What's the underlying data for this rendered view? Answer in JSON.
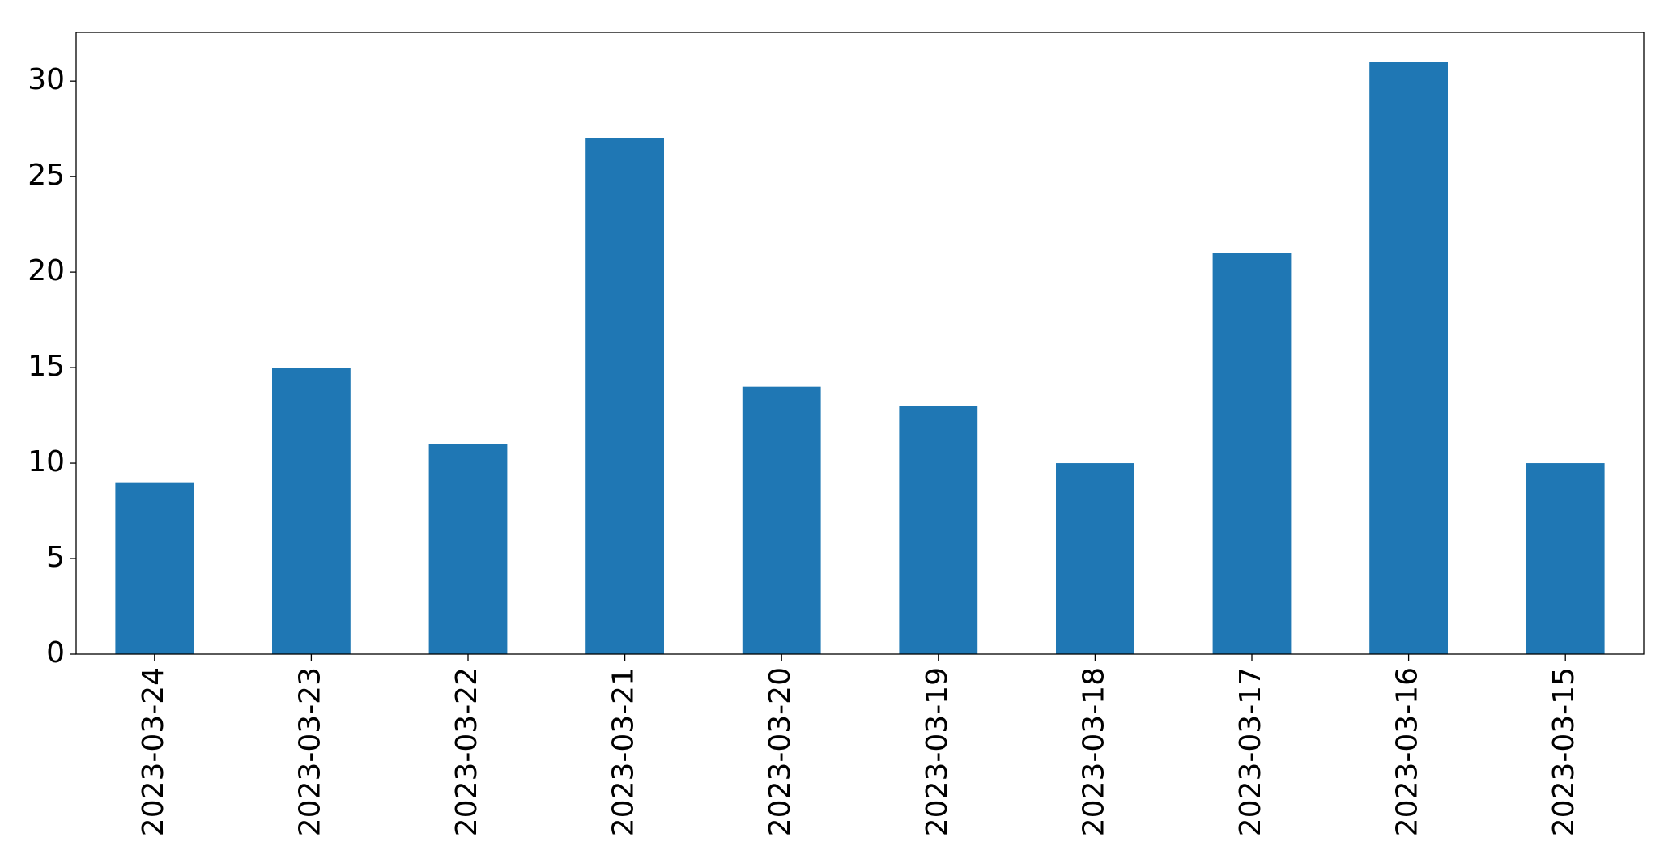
{
  "chart_data": {
    "type": "bar",
    "categories": [
      "2023-03-24",
      "2023-03-23",
      "2023-03-22",
      "2023-03-21",
      "2023-03-20",
      "2023-03-19",
      "2023-03-18",
      "2023-03-17",
      "2023-03-16",
      "2023-03-15"
    ],
    "values": [
      9,
      15,
      11,
      27,
      14,
      13,
      10,
      21,
      31,
      10
    ],
    "color": "#1f77b4",
    "ylim": [
      0,
      32.55
    ],
    "yticks": [
      0,
      5,
      10,
      15,
      20,
      25,
      30
    ],
    "grid": false
  }
}
